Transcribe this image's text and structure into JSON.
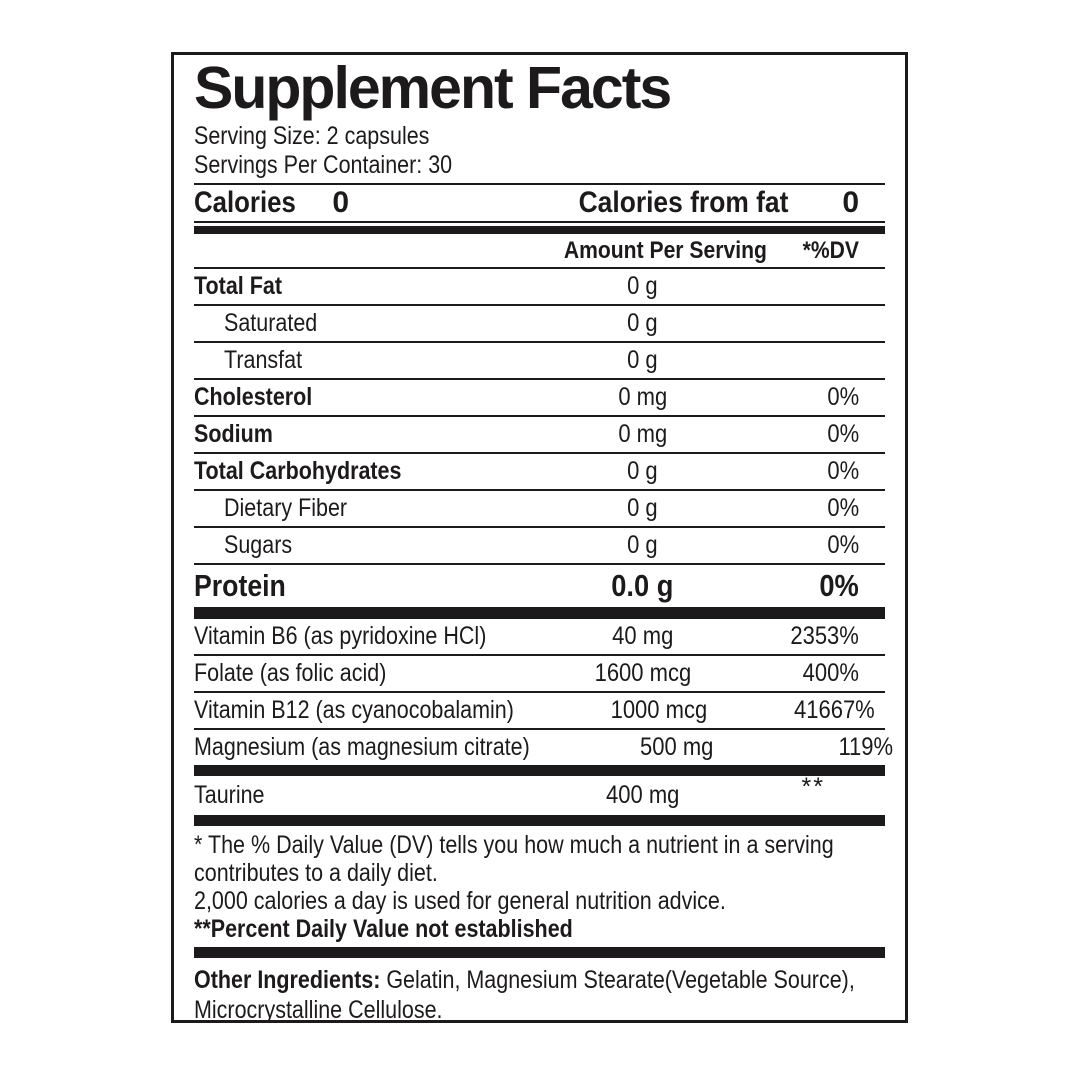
{
  "panel": {
    "title": "Supplement Facts",
    "serving_size": "Serving Size: 2 capsules",
    "servings_per_container": "Servings Per Container: 30",
    "calories": {
      "label": "Calories",
      "value": "0",
      "from_fat_label": "Calories from fat",
      "from_fat_value": "0"
    },
    "column_headers": {
      "amount": "Amount Per Serving",
      "dv": "*%DV"
    },
    "rows": [
      {
        "name": "Total Fat",
        "amount": "0 g",
        "dv": ""
      },
      {
        "name": "Saturated",
        "amount": "0 g",
        "dv": ""
      },
      {
        "name": "Transfat",
        "amount": "0 g",
        "dv": ""
      },
      {
        "name": "Cholesterol",
        "amount": "0 mg",
        "dv": "0%"
      },
      {
        "name": "Sodium",
        "amount": "0 mg",
        "dv": "0%"
      },
      {
        "name": "Total Carbohydrates",
        "amount": "0 g",
        "dv": "0%"
      },
      {
        "name": "Dietary Fiber",
        "amount": "0 g",
        "dv": "0%"
      },
      {
        "name": "Sugars",
        "amount": "0 g",
        "dv": "0%"
      },
      {
        "name": "Protein",
        "amount": "0.0 g",
        "dv": "0%"
      }
    ],
    "micronutrients": [
      {
        "name": "Vitamin B6 (as pyridoxine HCl)",
        "amount": "40 mg",
        "dv": "2353%"
      },
      {
        "name": "Folate (as folic acid)",
        "amount": "1600 mcg",
        "dv": "400%"
      },
      {
        "name": "Vitamin B12 (as cyanocobalamin)",
        "amount": "1000 mcg",
        "dv": "41667%"
      },
      {
        "name": "Magnesium (as magnesium citrate)",
        "amount": "500 mg",
        "dv": "119%"
      }
    ],
    "taurine": {
      "name": "Taurine",
      "amount": "400 mg",
      "dv": "**"
    },
    "footnotes": {
      "dv_note": "* The % Daily Value (DV) tells you how much a nutrient in a serving contributes to a daily diet.",
      "calorie_note": "2,000 calories a day is used for general nutrition advice.",
      "not_established_note": "**Percent Daily Value not established"
    },
    "other_ingredients": {
      "label": "Other Ingredients:",
      "text": " Gelatin, Magnesium Stearate(Vegetable Source), Microcrystalline Cellulose."
    },
    "colors": {
      "ink": "#1d1a1b",
      "background": "#ffffff"
    }
  }
}
